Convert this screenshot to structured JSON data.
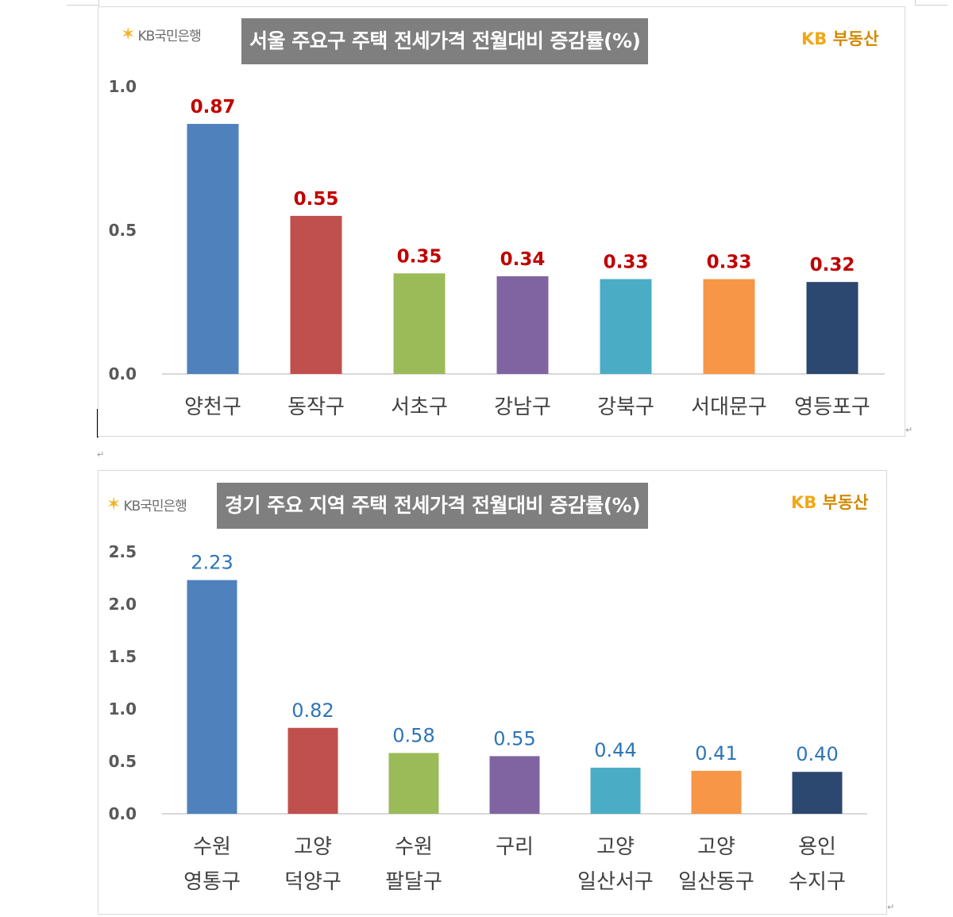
{
  "charts_meta": {
    "logo_text": "KB국민은행",
    "brand_prefix": "KB",
    "brand_suffix": "부동산",
    "colors": [
      "#4f81bd",
      "#c0504d",
      "#9bbb59",
      "#8064a2",
      "#4bacc6",
      "#f79646",
      "#2c4770"
    ],
    "title_bg": "#7f7f7f",
    "brand_color": "#f0a818"
  },
  "chart_data": [
    {
      "type": "bar",
      "title": "서울 주요구 주택 전세가격 전월대비 증감률(%)",
      "categories": [
        [
          "양천구"
        ],
        [
          "동작구"
        ],
        [
          "서초구"
        ],
        [
          "강남구"
        ],
        [
          "강북구"
        ],
        [
          "서대문구"
        ],
        [
          "영등포구"
        ]
      ],
      "values": [
        0.87,
        0.55,
        0.35,
        0.34,
        0.33,
        0.33,
        0.32
      ],
      "data_labels": [
        "0.87",
        "0.55",
        "0.35",
        "0.34",
        "0.33",
        "0.33",
        "0.32"
      ],
      "label_color": "#c00000",
      "yticks": [
        "0.0",
        "0.5",
        "1.0"
      ],
      "ylim": [
        0,
        1.0
      ],
      "grid": false
    },
    {
      "type": "bar",
      "title": "경기 주요 지역 주택 전세가격 전월대비 증감률(%)",
      "categories": [
        [
          "수원",
          "영통구"
        ],
        [
          "고양",
          "덕양구"
        ],
        [
          "수원",
          "팔달구"
        ],
        [
          "구리"
        ],
        [
          "고양",
          "일산서구"
        ],
        [
          "고양",
          "일산동구"
        ],
        [
          "용인",
          "수지구"
        ]
      ],
      "values": [
        2.23,
        0.82,
        0.58,
        0.55,
        0.44,
        0.41,
        0.4
      ],
      "data_labels": [
        "2.23",
        "0.82",
        "0.58",
        "0.55",
        "0.44",
        "0.41",
        "0.40"
      ],
      "label_color": "#2e75b6",
      "yticks": [
        "0.0",
        "0.5",
        "1.0",
        "1.5",
        "2.0",
        "2.5"
      ],
      "ylim": [
        0,
        2.5
      ],
      "grid": false
    }
  ]
}
